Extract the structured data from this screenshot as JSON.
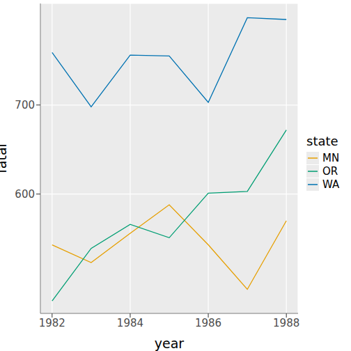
{
  "chart_data": {
    "type": "line",
    "x_label": "year",
    "y_label": "fatal",
    "legend_title": "state",
    "x": [
      1982,
      1983,
      1984,
      1985,
      1986,
      1987,
      1988
    ],
    "series": [
      {
        "name": "MN",
        "color": "#E69F00",
        "values": [
          543,
          523,
          556,
          588,
          543,
          493,
          570
        ]
      },
      {
        "name": "OR",
        "color": "#009E73",
        "values": [
          480,
          539,
          566,
          551,
          601,
          603,
          672
        ]
      },
      {
        "name": "WA",
        "color": "#0072B2",
        "values": [
          759,
          698,
          756,
          755,
          703,
          798,
          796
        ]
      }
    ],
    "xlim": [
      1981.7,
      1988.3
    ],
    "xticks": [
      1982,
      1984,
      1986,
      1988
    ],
    "ylim": [
      466,
      814
    ],
    "yticks": [
      600,
      700
    ],
    "grid": true,
    "legend": "right"
  }
}
